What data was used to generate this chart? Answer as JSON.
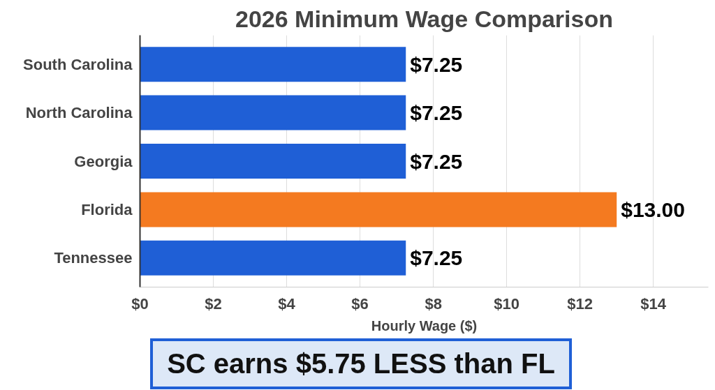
{
  "chart_data": {
    "type": "bar",
    "orientation": "horizontal",
    "title": "2026 Minimum Wage Comparison",
    "xlabel": "Hourly Wage ($)",
    "categories": [
      "South Carolina",
      "North Carolina",
      "Georgia",
      "Florida",
      "Tennessee"
    ],
    "values": [
      7.25,
      7.25,
      7.25,
      13.0,
      7.25
    ],
    "colors": [
      "#1f5fd6",
      "#1f5fd6",
      "#1f5fd6",
      "#f47a20",
      "#1f5fd6"
    ],
    "value_labels": [
      "$7.25",
      "$7.25",
      "$7.25",
      "$13.00",
      "$7.25"
    ],
    "xlim": [
      0,
      15.5
    ],
    "xticks": [
      {
        "value": 0,
        "label": "$0"
      },
      {
        "value": 2,
        "label": "$2"
      },
      {
        "value": 4,
        "label": "$4"
      },
      {
        "value": 6,
        "label": "$6"
      },
      {
        "value": 8,
        "label": "$8"
      },
      {
        "value": 10,
        "label": "$10"
      },
      {
        "value": 12,
        "label": "$12"
      },
      {
        "value": 14,
        "label": "$14"
      }
    ],
    "grid": "x",
    "annotations": [
      "SC earns $5.75 LESS than FL"
    ]
  }
}
